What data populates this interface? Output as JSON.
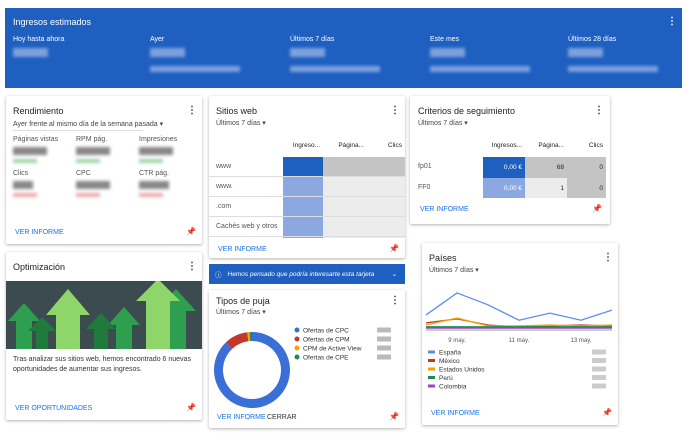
{
  "banner": {
    "title": "Ingresos estimados",
    "periods": [
      "Hoy hasta ahora",
      "Ayer",
      "Últimos 7 días",
      "Este mes",
      "Últimos 28 días"
    ]
  },
  "rendimiento": {
    "title": "Rendimiento",
    "selector": "Ayer frente al mismo día de la semana pasada",
    "metrics": [
      "Páginas vistas",
      "RPM pág.",
      "Impresiones",
      "Clics",
      "CPC",
      "CTR pág."
    ],
    "link": "VER INFORME"
  },
  "optimizacion": {
    "title": "Optimización",
    "text": "Tras analizar sus sitios web, hemos encontrado 6 nuevas oportunidades de aumentar sus ingresos.",
    "link": "VER OPORTUNIDADES"
  },
  "sitios": {
    "title": "Sitios web",
    "selector": "Últimos 7 días",
    "columns": [
      "Ingreso...",
      "Página...",
      "Clics"
    ],
    "rows": [
      "www",
      "www.",
      ".com",
      "Cachés web y otros"
    ],
    "link": "VER INFORME"
  },
  "notice": "Hemos pensado que podría interesarte esta tarjeta",
  "criterios": {
    "title": "Criterios de seguimiento",
    "selector": "Últimos 7 días",
    "columns": [
      "Ingresos...",
      "Página...",
      "Clics"
    ],
    "rows": [
      {
        "name": "fp01",
        "values": [
          "0,00 €",
          "68",
          "0"
        ]
      },
      {
        "name": "FF0",
        "values": [
          "0,00 €",
          "1",
          "0"
        ]
      }
    ],
    "link": "VER INFORME"
  },
  "chart_data": [
    {
      "type": "pie",
      "title": "Tipos de puja",
      "selector": "Últimos 7 días",
      "categories": [
        "Ofertas de CPC",
        "Ofertas de CPM",
        "CPM de Active View",
        "Ofertas de CPE"
      ],
      "values": [
        88,
        10,
        1,
        1
      ],
      "colors": [
        "#3a6fd8",
        "#c0392b",
        "#f4a300",
        "#1e8e4e"
      ],
      "donut": true,
      "buttons": [
        "VER INFORME",
        "CERRAR"
      ]
    },
    {
      "type": "line",
      "title": "Países",
      "selector": "Últimos 7 días",
      "categories": [
        null,
        "9 may.",
        null,
        "11 may.",
        null,
        "13 may.",
        null
      ],
      "ylim": [
        0,
        100
      ],
      "series": [
        {
          "name": "España",
          "color": "#5b8def",
          "values": [
            32,
            82,
            55,
            20,
            36,
            20,
            43
          ]
        },
        {
          "name": "México",
          "color": "#c0392b",
          "values": [
            14,
            23,
            9,
            5,
            7,
            9,
            7
          ]
        },
        {
          "name": "Estados Unidos",
          "color": "#f4a300",
          "values": [
            9,
            25,
            7,
            7,
            9,
            7,
            9
          ]
        },
        {
          "name": "Perú",
          "color": "#1e8e4e",
          "values": [
            5,
            5,
            5,
            5,
            5,
            5,
            5
          ]
        },
        {
          "name": "Colombia",
          "color": "#a142c4",
          "values": [
            2,
            2,
            2,
            2,
            2,
            2,
            2
          ]
        }
      ],
      "link": "VER INFORME"
    }
  ]
}
